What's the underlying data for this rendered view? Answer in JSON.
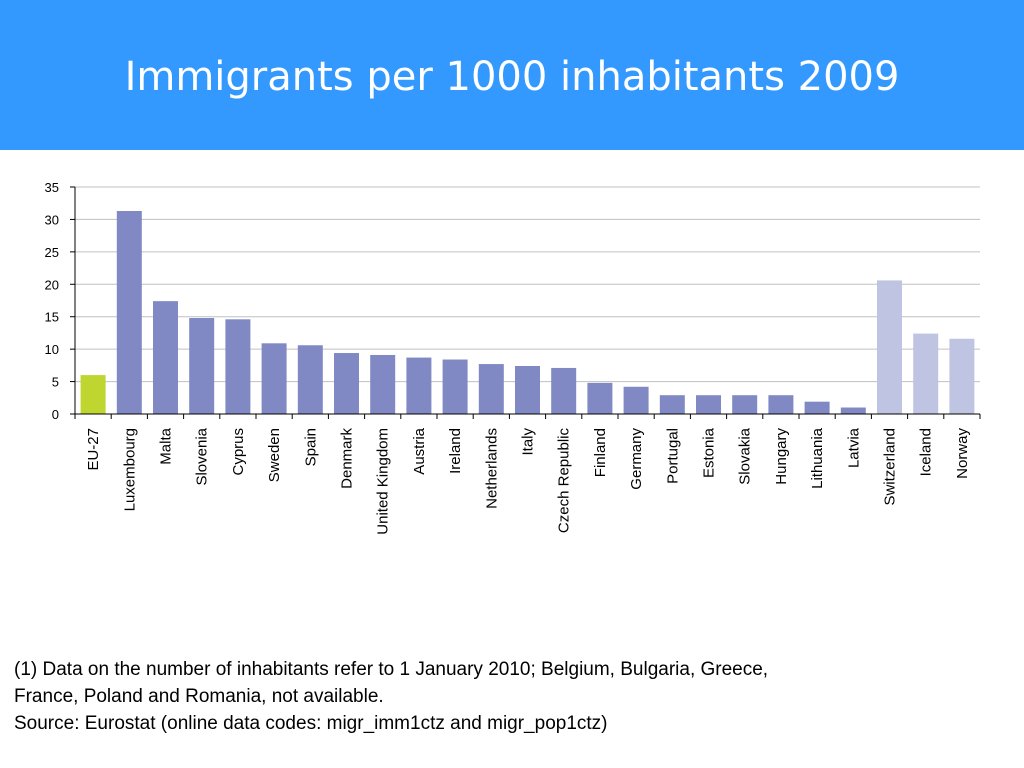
{
  "slide": {
    "title": "Immigrants per 1000 inhabitants 2009",
    "header_color": "#3399ff"
  },
  "chart_data": {
    "type": "bar",
    "title": "",
    "xlabel": "",
    "ylabel": "",
    "ylim": [
      0,
      35
    ],
    "yticks": [
      0,
      5,
      10,
      15,
      20,
      25,
      30,
      35
    ],
    "grid": true,
    "categories": [
      "EU-27",
      "Luxembourg",
      "Malta",
      "Slovenia",
      "Cyprus",
      "Sweden",
      "Spain",
      "Denmark",
      "United Kingdom",
      "Austria",
      "Ireland",
      "Netherlands",
      "Italy",
      "Czech Republic",
      "Finland",
      "Germany",
      "Portugal",
      "Estonia",
      "Slovakia",
      "Hungary",
      "Lithuania",
      "Latvia",
      "Switzerland",
      "Iceland",
      "Norway"
    ],
    "values": [
      6.0,
      31.3,
      17.4,
      14.8,
      14.6,
      10.9,
      10.6,
      9.4,
      9.1,
      8.7,
      8.4,
      7.7,
      7.4,
      7.1,
      4.8,
      4.2,
      2.9,
      2.9,
      2.9,
      2.9,
      1.9,
      1.0,
      20.6,
      12.4,
      11.6
    ],
    "colors": {
      "eu": "#bfd630",
      "member": "#8089c4",
      "non_eu": "#bfc4e2",
      "grid": "#c0c0c0"
    },
    "groups": [
      "eu",
      "member",
      "member",
      "member",
      "member",
      "member",
      "member",
      "member",
      "member",
      "member",
      "member",
      "member",
      "member",
      "member",
      "member",
      "member",
      "member",
      "member",
      "member",
      "member",
      "member",
      "member",
      "non_eu",
      "non_eu",
      "non_eu"
    ]
  },
  "footnotes": {
    "line1": "(1) Data on the number of inhabitants refer to 1 January 2010; Belgium, Bulgaria, Greece,",
    "line2": "France, Poland and Romania, not available.",
    "line3": "Source: Eurostat (online data codes: migr_imm1ctz and migr_pop1ctz)"
  }
}
